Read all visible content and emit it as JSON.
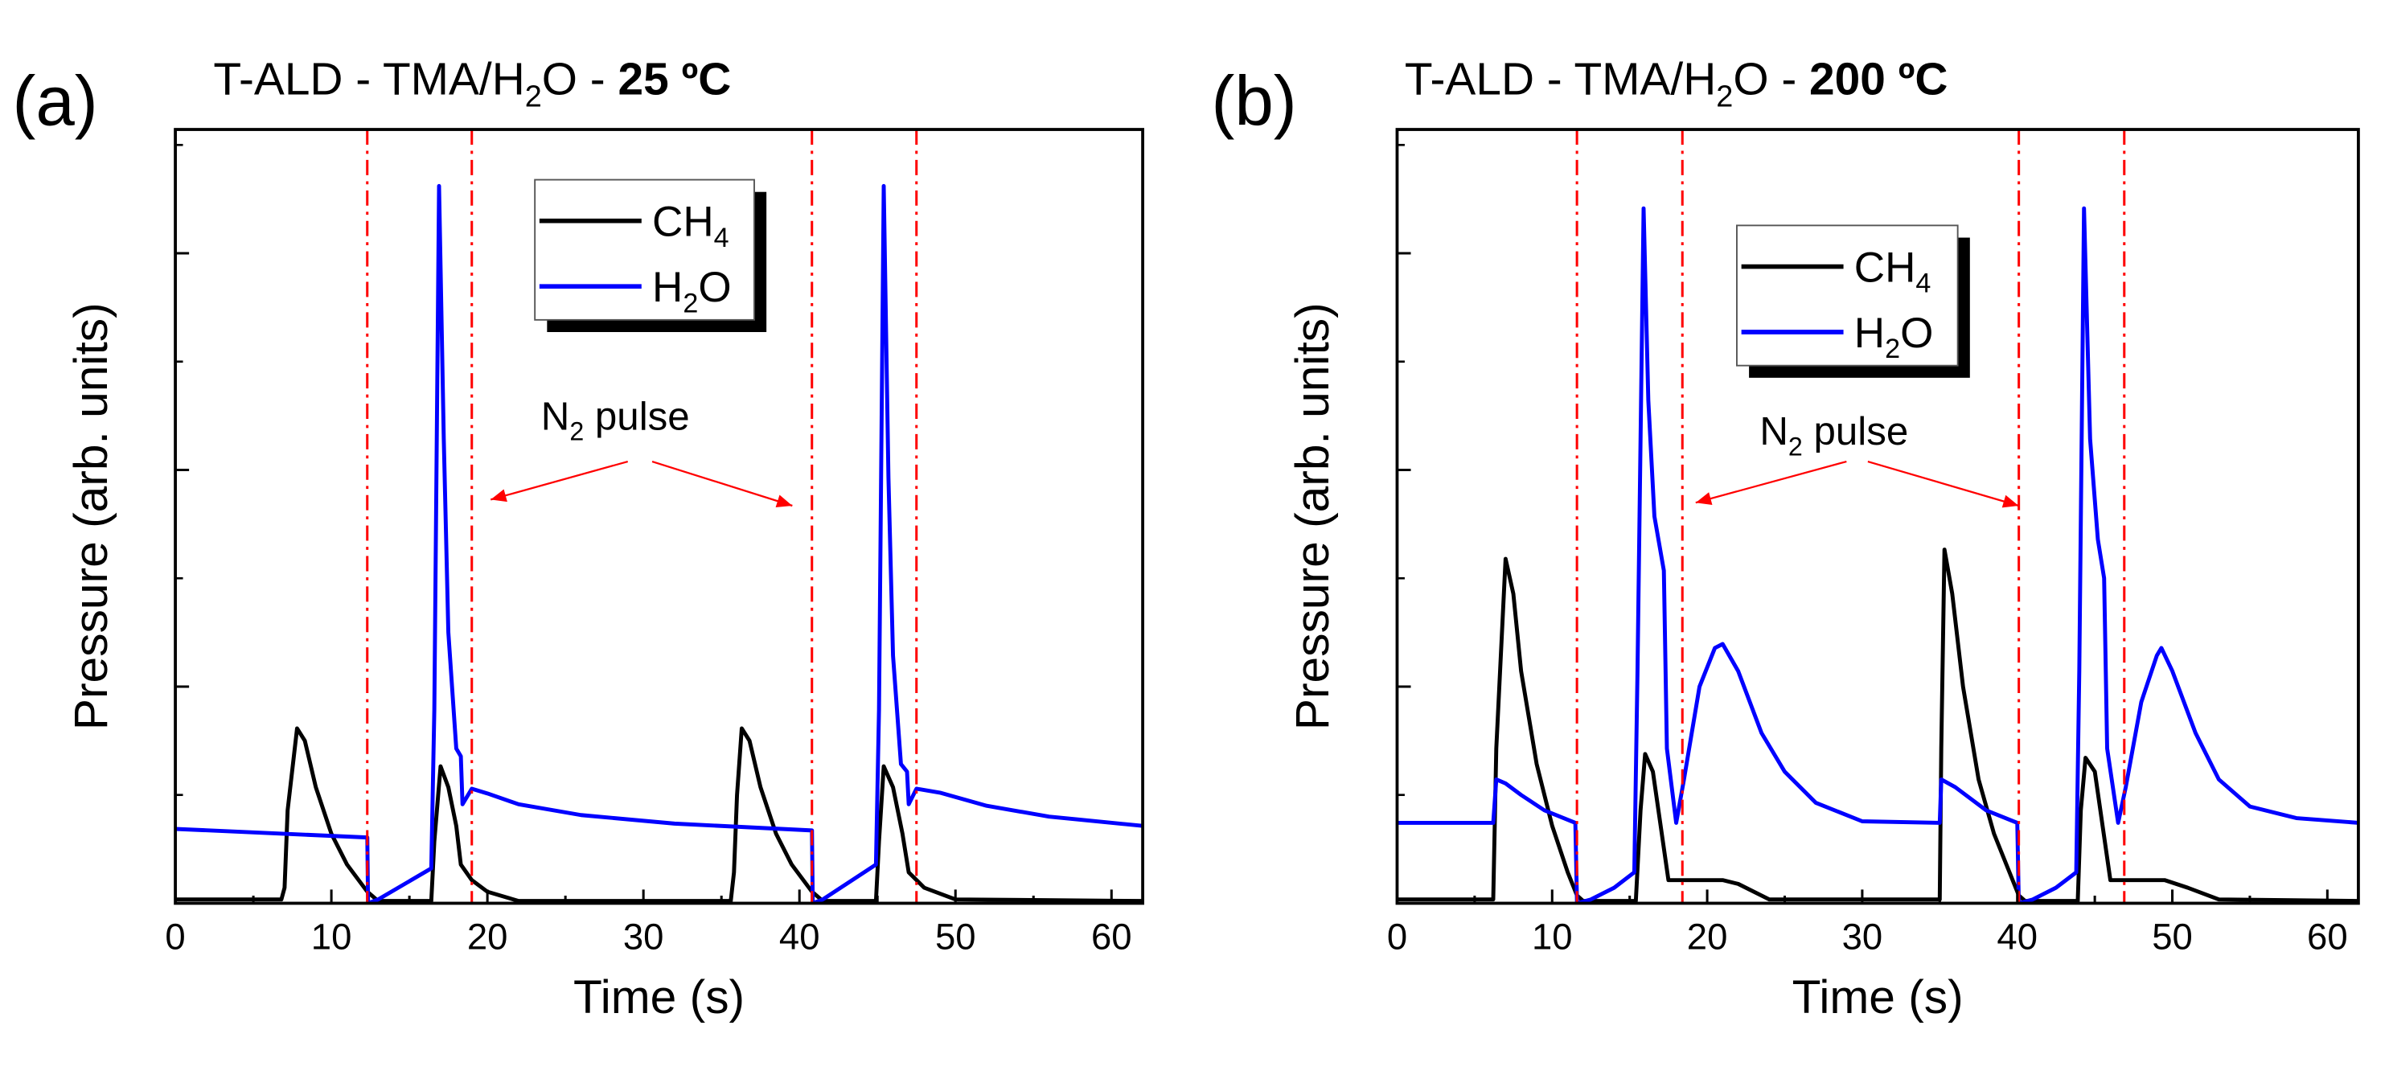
{
  "chart_data": [
    {
      "type": "line",
      "panel_label": "(a)",
      "title_prefix": "T-ALD - TMA/H",
      "title_sub": "2",
      "title_mid": "O - ",
      "title_bold": "25 ºC",
      "xlabel": "Time (s)",
      "ylabel": "Pressure (arb. units)",
      "xlim": [
        0,
        62
      ],
      "ylim": [
        0,
        100
      ],
      "xticks": [
        0,
        10,
        20,
        30,
        40,
        50,
        60
      ],
      "yticks": [
        28,
        56,
        84
      ],
      "legend_placement": "top-center",
      "annotation": {
        "text": "N",
        "sub": "2",
        "rest": " pulse"
      },
      "vlines": [
        12.3,
        19.0,
        40.8,
        47.5
      ],
      "series": [
        {
          "name": "CH",
          "sub": "4",
          "color": "#000000",
          "points": [
            [
              0,
              0.5
            ],
            [
              6.8,
              0.5
            ],
            [
              7.0,
              2
            ],
            [
              7.2,
              12
            ],
            [
              7.8,
              22.6
            ],
            [
              8.3,
              21
            ],
            [
              9,
              15
            ],
            [
              10,
              9
            ],
            [
              11,
              5
            ],
            [
              12.3,
              1.5
            ],
            [
              13,
              0.3
            ],
            [
              16.4,
              0.3
            ],
            [
              16.6,
              8
            ],
            [
              17,
              17.7
            ],
            [
              17.5,
              15
            ],
            [
              18,
              10
            ],
            [
              18.3,
              5
            ],
            [
              19,
              3
            ],
            [
              20,
              1.5
            ],
            [
              22,
              0.3
            ],
            [
              35.6,
              0.3
            ],
            [
              35.8,
              4
            ],
            [
              36,
              14
            ],
            [
              36.3,
              22.6
            ],
            [
              36.8,
              21
            ],
            [
              37.5,
              15
            ],
            [
              38.5,
              9
            ],
            [
              39.5,
              5
            ],
            [
              40.8,
              1.5
            ],
            [
              41.5,
              0.3
            ],
            [
              44.9,
              0.3
            ],
            [
              45.1,
              8
            ],
            [
              45.4,
              17.7
            ],
            [
              46,
              15
            ],
            [
              46.6,
              9
            ],
            [
              47,
              4
            ],
            [
              48,
              2
            ],
            [
              50,
              0.5
            ],
            [
              62,
              0.3
            ]
          ]
        },
        {
          "name": "H",
          "sub": "2",
          "rest": "O",
          "color": "#0000ff",
          "points": [
            [
              0,
              9.6
            ],
            [
              12.3,
              8.5
            ],
            [
              12.35,
              0
            ],
            [
              13,
              0.5
            ],
            [
              16.4,
              4.5
            ],
            [
              16.6,
              25
            ],
            [
              16.9,
              92.7
            ],
            [
              17.2,
              60
            ],
            [
              17.5,
              35
            ],
            [
              18,
              20
            ],
            [
              18.3,
              19
            ],
            [
              18.4,
              12.8
            ],
            [
              19,
              14.8
            ],
            [
              20,
              14.2
            ],
            [
              22,
              12.8
            ],
            [
              26,
              11.4
            ],
            [
              32,
              10.3
            ],
            [
              40.8,
              9.4
            ],
            [
              40.85,
              0
            ],
            [
              41.5,
              0.5
            ],
            [
              44.9,
              5
            ],
            [
              45.1,
              25
            ],
            [
              45.4,
              92.7
            ],
            [
              45.7,
              55
            ],
            [
              46,
              32
            ],
            [
              46.5,
              18
            ],
            [
              46.9,
              17
            ],
            [
              47,
              12.8
            ],
            [
              47.5,
              14.8
            ],
            [
              49,
              14.3
            ],
            [
              52,
              12.6
            ],
            [
              56,
              11.2
            ],
            [
              62,
              10
            ]
          ]
        }
      ]
    },
    {
      "type": "line",
      "panel_label": "(b)",
      "title_prefix": "T-ALD - TMA/H",
      "title_sub": "2",
      "title_mid": "O - ",
      "title_bold": "200 ºC",
      "xlabel": "Time (s)",
      "ylabel": "Pressure (arb. units)",
      "xlim": [
        0,
        62
      ],
      "ylim": [
        0,
        100
      ],
      "xticks": [
        0,
        10,
        20,
        30,
        40,
        50,
        60
      ],
      "yticks": [
        28,
        56,
        84
      ],
      "legend_placement": "top-center",
      "annotation": {
        "text": "N",
        "sub": "2",
        "rest": " pulse"
      },
      "vlines": [
        11.6,
        18.4,
        40.1,
        46.9
      ],
      "series": [
        {
          "name": "CH",
          "sub": "4",
          "color": "#000000",
          "points": [
            [
              0,
              0.5
            ],
            [
              6.2,
              0.5
            ],
            [
              6.4,
              20
            ],
            [
              7,
              44.5
            ],
            [
              7.5,
              40
            ],
            [
              8,
              30
            ],
            [
              9,
              18
            ],
            [
              10,
              10
            ],
            [
              11,
              4
            ],
            [
              11.6,
              1
            ],
            [
              12,
              0.3
            ],
            [
              15.4,
              0.3
            ],
            [
              15.7,
              12
            ],
            [
              16,
              19.3
            ],
            [
              16.5,
              17
            ],
            [
              17,
              10
            ],
            [
              17.5,
              3
            ],
            [
              18,
              3
            ],
            [
              21,
              3
            ],
            [
              22,
              2.5
            ],
            [
              24,
              0.5
            ],
            [
              35,
              0.5
            ],
            [
              35.1,
              20
            ],
            [
              35.3,
              45.7
            ],
            [
              35.8,
              40
            ],
            [
              36.5,
              28
            ],
            [
              37.5,
              16
            ],
            [
              38.5,
              9
            ],
            [
              39.5,
              4
            ],
            [
              40.1,
              1
            ],
            [
              40.5,
              0.3
            ],
            [
              43.9,
              0.3
            ],
            [
              44.1,
              12
            ],
            [
              44.4,
              18.8
            ],
            [
              45,
              17
            ],
            [
              45.5,
              10
            ],
            [
              46,
              3
            ],
            [
              46.5,
              3
            ],
            [
              49.5,
              3
            ],
            [
              51,
              2
            ],
            [
              53,
              0.5
            ],
            [
              62,
              0.3
            ]
          ]
        },
        {
          "name": "H",
          "sub": "2",
          "rest": "O",
          "color": "#0000ff",
          "points": [
            [
              0,
              10.4
            ],
            [
              6.2,
              10.4
            ],
            [
              6.4,
              16
            ],
            [
              7,
              15.5
            ],
            [
              8,
              14
            ],
            [
              9.5,
              12
            ],
            [
              11.5,
              10.4
            ],
            [
              11.6,
              0
            ],
            [
              12.5,
              0.5
            ],
            [
              14,
              2
            ],
            [
              15.3,
              4
            ],
            [
              15.5,
              30
            ],
            [
              15.9,
              89.8
            ],
            [
              16.2,
              65
            ],
            [
              16.6,
              50
            ],
            [
              17.2,
              43
            ],
            [
              17.4,
              20
            ],
            [
              18,
              10.4
            ],
            [
              18.5,
              16
            ],
            [
              19.5,
              28
            ],
            [
              20.5,
              33
            ],
            [
              21,
              33.5
            ],
            [
              22,
              30
            ],
            [
              23.5,
              22
            ],
            [
              25,
              17
            ],
            [
              27,
              13
            ],
            [
              30,
              10.6
            ],
            [
              35,
              10.4
            ],
            [
              35.1,
              16
            ],
            [
              36,
              15
            ],
            [
              38,
              12
            ],
            [
              40,
              10.4
            ],
            [
              40.1,
              0
            ],
            [
              41,
              0.5
            ],
            [
              42.5,
              2
            ],
            [
              43.8,
              4
            ],
            [
              44,
              30
            ],
            [
              44.3,
              89.8
            ],
            [
              44.7,
              60
            ],
            [
              45.2,
              47
            ],
            [
              45.6,
              42
            ],
            [
              45.8,
              20
            ],
            [
              46.5,
              10.4
            ],
            [
              47,
              15
            ],
            [
              48,
              26
            ],
            [
              49,
              32
            ],
            [
              49.3,
              33
            ],
            [
              50,
              30
            ],
            [
              51.5,
              22
            ],
            [
              53,
              16
            ],
            [
              55,
              12.5
            ],
            [
              58,
              11
            ],
            [
              62,
              10.4
            ]
          ]
        }
      ]
    }
  ]
}
